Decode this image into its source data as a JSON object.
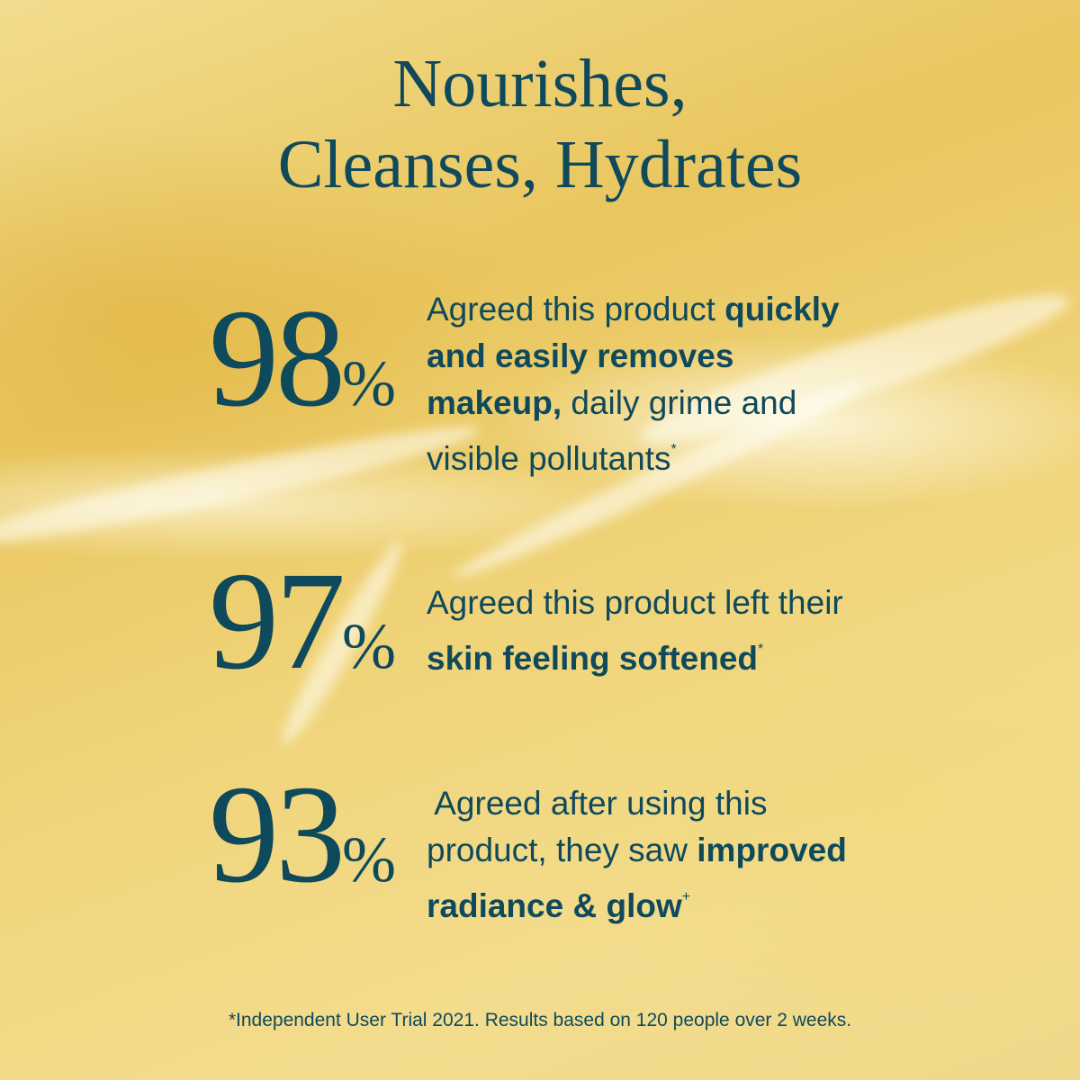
{
  "title": {
    "line1": "Nourishes,",
    "line2": "Cleanses, Hydrates"
  },
  "text_color": "#0f4a5c",
  "stats": [
    {
      "number": "98",
      "percent": "%",
      "lines": [
        [
          "Agreed this product ",
          "quickly"
        ],
        [
          "and easily removes"
        ],
        [
          "makeup,",
          " daily grime and"
        ],
        [
          "visible pollutants",
          "*"
        ]
      ]
    },
    {
      "number": "97",
      "percent": "%",
      "lines": [
        [
          "Agreed this product left their"
        ],
        [
          "skin feeling softened",
          "*"
        ]
      ]
    },
    {
      "number": "93",
      "percent": "%",
      "lines": [
        [
          " Agreed after using this"
        ],
        [
          "product, they saw ",
          "improved"
        ],
        [
          "radiance & glow",
          "+"
        ]
      ]
    }
  ],
  "footnote": "*Independent User Trial 2021. Results based on 120 people over 2 weeks."
}
